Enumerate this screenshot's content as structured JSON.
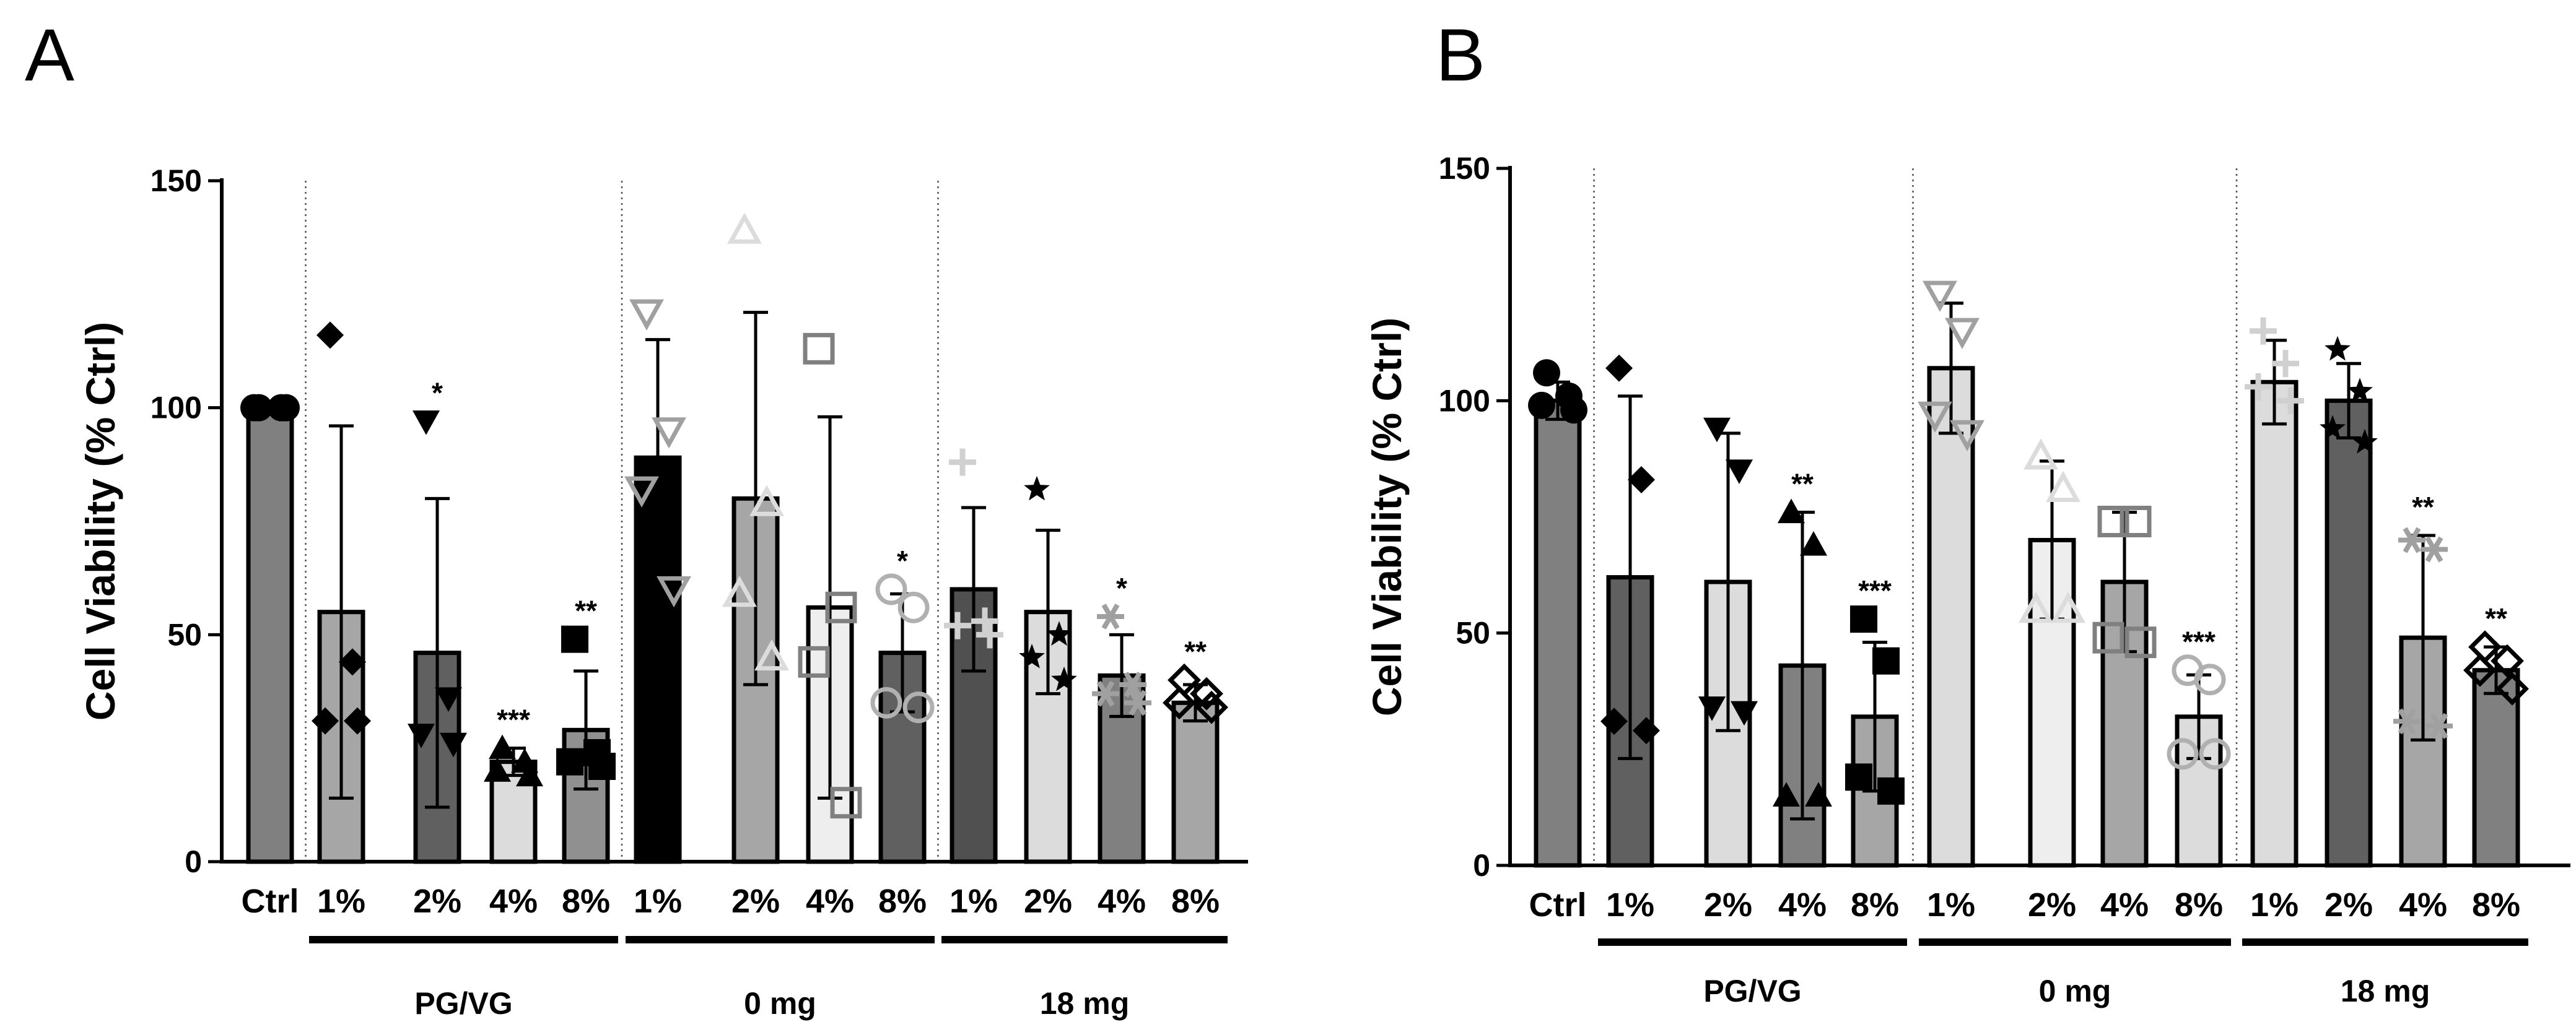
{
  "chart_data": [
    {
      "panel": "A",
      "type": "bar",
      "ylabel": "Cell Viability (% Ctrl)",
      "ylim": [
        0,
        150
      ],
      "yticks": [
        0,
        50,
        100,
        150
      ],
      "categories": [
        "Ctrl",
        "1%",
        "2%",
        "4%",
        "8%",
        "1%",
        "2%",
        "4%",
        "8%",
        "1%",
        "2%",
        "4%",
        "8%"
      ],
      "groups": [
        {
          "label": "PG/VG",
          "from": 1,
          "to": 4
        },
        {
          "label": "0 mg",
          "from": 5,
          "to": 8
        },
        {
          "label": "18 mg",
          "from": 9,
          "to": 12
        }
      ],
      "bars": [
        {
          "value": 100,
          "sd": 1,
          "significance": "",
          "fill": "#808080",
          "marker": "circle",
          "marker_color": "#000000",
          "points": [
            100,
            100,
            100,
            100
          ]
        },
        {
          "value": 55,
          "sd": 41,
          "significance": "",
          "fill": "#a6a6a6",
          "marker": "diamond",
          "marker_color": "#000000",
          "points": [
            116,
            44,
            31,
            31
          ]
        },
        {
          "value": 46,
          "sd": 34,
          "significance": "*",
          "fill": "#606060",
          "marker": "tri-down",
          "marker_color": "#000000",
          "points": [
            97,
            36,
            28,
            26
          ]
        },
        {
          "value": 22,
          "sd": 3,
          "significance": "***",
          "fill": "#dcdcdc",
          "marker": "tri-up",
          "marker_color": "#000000",
          "points": [
            25,
            22,
            20,
            19
          ]
        },
        {
          "value": 29,
          "sd": 13,
          "significance": "**",
          "fill": "#909090",
          "marker": "square",
          "marker_color": "#000000",
          "points": [
            49,
            24,
            22,
            21
          ]
        },
        {
          "value": 89,
          "sd": 26,
          "significance": "",
          "fill": "#000000",
          "marker": "tri-down-open",
          "marker_color": "#a0a0a0",
          "points": [
            121,
            95,
            82,
            60
          ]
        },
        {
          "value": 80,
          "sd": 41,
          "significance": "",
          "fill": "#a6a6a6",
          "marker": "tri-up-open",
          "marker_color": "#dcdcdc",
          "points": [
            139,
            79,
            59,
            45
          ]
        },
        {
          "value": 56,
          "sd": 42,
          "significance": "",
          "fill": "#eeeeee",
          "marker": "square-open",
          "marker_color": "#808080",
          "points": [
            113,
            56,
            44,
            13
          ]
        },
        {
          "value": 46,
          "sd": 13,
          "significance": "*",
          "fill": "#606060",
          "marker": "circle-open",
          "marker_color": "#b0b0b0",
          "points": [
            60,
            56,
            35,
            34
          ]
        },
        {
          "value": 60,
          "sd": 18,
          "significance": "",
          "fill": "#505050",
          "marker": "plus",
          "marker_color": "#d0d0d0",
          "points": [
            88,
            53,
            52,
            50
          ]
        },
        {
          "value": 55,
          "sd": 18,
          "significance": "",
          "fill": "#dcdcdc",
          "marker": "star",
          "marker_color": "#000000",
          "points": [
            82,
            50,
            45,
            40
          ]
        },
        {
          "value": 41,
          "sd": 9,
          "significance": "*",
          "fill": "#808080",
          "marker": "asterisk",
          "marker_color": "#a0a0a0",
          "points": [
            54,
            39,
            37,
            35
          ]
        },
        {
          "value": 35,
          "sd": 4,
          "significance": "**",
          "fill": "#a6a6a6",
          "marker": "diamond-open",
          "marker_color": "#000000",
          "points": [
            40,
            37,
            35,
            34
          ]
        }
      ]
    },
    {
      "panel": "B",
      "type": "bar",
      "ylabel": "Cell Viability (% Ctrl)",
      "ylim": [
        0,
        150
      ],
      "yticks": [
        0,
        50,
        100,
        150
      ],
      "categories": [
        "Ctrl",
        "1%",
        "2%",
        "4%",
        "8%",
        "1%",
        "2%",
        "4%",
        "8%",
        "1%",
        "2%",
        "4%",
        "8%"
      ],
      "groups": [
        {
          "label": "PG/VG",
          "from": 1,
          "to": 4
        },
        {
          "label": "0 mg",
          "from": 5,
          "to": 8
        },
        {
          "label": "18 mg",
          "from": 9,
          "to": 12
        }
      ],
      "bars": [
        {
          "value": 100,
          "sd": 4,
          "significance": "",
          "fill": "#808080",
          "marker": "circle",
          "marker_color": "#000000",
          "points": [
            106,
            101,
            99,
            98
          ]
        },
        {
          "value": 62,
          "sd": 39,
          "significance": "",
          "fill": "#606060",
          "marker": "diamond",
          "marker_color": "#000000",
          "points": [
            107,
            83,
            31,
            29
          ]
        },
        {
          "value": 61,
          "sd": 32,
          "significance": "",
          "fill": "#dcdcdc",
          "marker": "tri-down",
          "marker_color": "#000000",
          "points": [
            94,
            85,
            34,
            33
          ]
        },
        {
          "value": 43,
          "sd": 33,
          "significance": "**",
          "fill": "#808080",
          "marker": "tri-up",
          "marker_color": "#000000",
          "points": [
            76,
            69,
            15,
            15
          ]
        },
        {
          "value": 32,
          "sd": 16,
          "significance": "***",
          "fill": "#a6a6a6",
          "marker": "square",
          "marker_color": "#000000",
          "points": [
            53,
            44,
            19,
            16
          ]
        },
        {
          "value": 107,
          "sd": 14,
          "significance": "",
          "fill": "#dcdcdc",
          "marker": "tri-down-open",
          "marker_color": "#a0a0a0",
          "points": [
            123,
            115,
            97,
            93
          ]
        },
        {
          "value": 70,
          "sd": 17,
          "significance": "",
          "fill": "#eeeeee",
          "marker": "tri-up-open",
          "marker_color": "#dcdcdc",
          "points": [
            88,
            81,
            55,
            55
          ]
        },
        {
          "value": 61,
          "sd": 15,
          "significance": "",
          "fill": "#a6a6a6",
          "marker": "square-open",
          "marker_color": "#808080",
          "points": [
            74,
            74,
            49,
            48
          ]
        },
        {
          "value": 32,
          "sd": 9,
          "significance": "***",
          "fill": "#dcdcdc",
          "marker": "circle-open",
          "marker_color": "#b0b0b0",
          "points": [
            42,
            40,
            24,
            24
          ]
        },
        {
          "value": 104,
          "sd": 9,
          "significance": "",
          "fill": "#dcdcdc",
          "marker": "plus",
          "marker_color": "#d0d0d0",
          "points": [
            115,
            108,
            103,
            100
          ]
        },
        {
          "value": 100,
          "sd": 8,
          "significance": "",
          "fill": "#606060",
          "marker": "star",
          "marker_color": "#000000",
          "points": [
            111,
            102,
            94,
            91
          ]
        },
        {
          "value": 49,
          "sd": 22,
          "significance": "**",
          "fill": "#a6a6a6",
          "marker": "asterisk",
          "marker_color": "#a0a0a0",
          "points": [
            70,
            68,
            31,
            30
          ]
        },
        {
          "value": 42,
          "sd": 5,
          "significance": "**",
          "fill": "#808080",
          "marker": "diamond-open",
          "marker_color": "#000000",
          "points": [
            47,
            44,
            42,
            38
          ]
        }
      ]
    }
  ]
}
